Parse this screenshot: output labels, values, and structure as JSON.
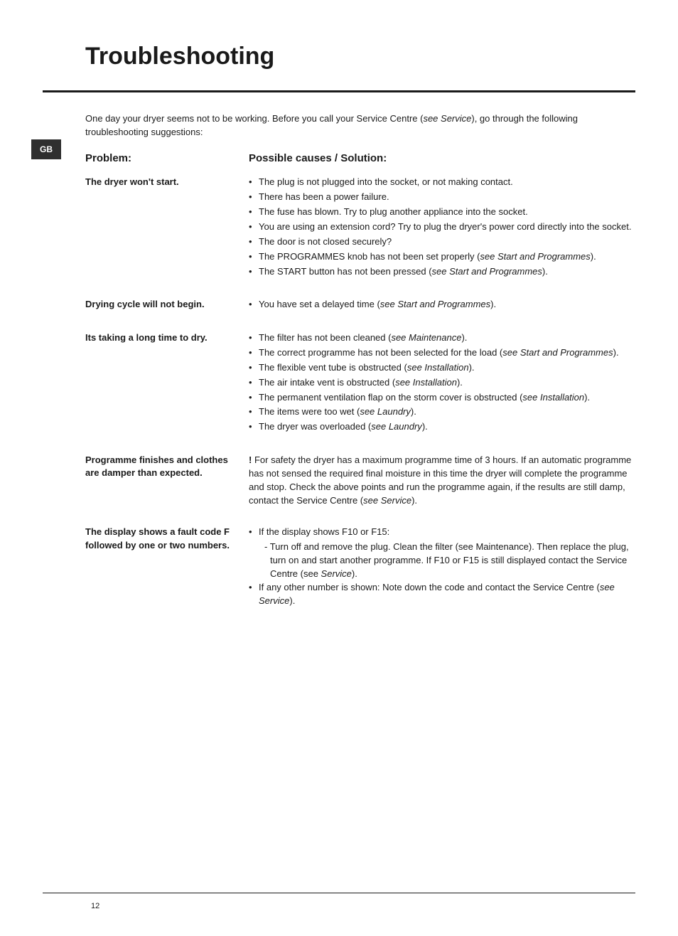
{
  "colors": {
    "text": "#1a1a1a",
    "bg": "#ffffff",
    "tag_bg": "#2f2f2f",
    "tag_fg": "#ffffff"
  },
  "typography": {
    "title_size": 34,
    "header_size": 15,
    "body_size": 13,
    "tag_size": 12,
    "pagenum_size": 11
  },
  "title": "Troubleshooting",
  "lang_tag": "GB",
  "intro_before_italic": "One day your dryer seems not to be working. Before you call your Service Centre (",
  "intro_italic": "see Service",
  "intro_after_italic": "), go through the following troubleshooting suggestions:",
  "headers": {
    "problem": "Problem:",
    "solution": "Possible causes / Solution:"
  },
  "rows": [
    {
      "problem": "The dryer won't start.",
      "bullets": [
        [
          {
            "t": "The plug is not plugged into the socket, or not making contact."
          }
        ],
        [
          {
            "t": "There has been a power failure."
          }
        ],
        [
          {
            "t": "The fuse has blown. Try to plug another appliance into the socket."
          }
        ],
        [
          {
            "t": "You are using an extension cord?  Try to plug the dryer's power cord directly into the socket."
          }
        ],
        [
          {
            "t": "The door is not closed securely?"
          }
        ],
        [
          {
            "t": "The PROGRAMMES knob has not been set properly ("
          },
          {
            "t": "see Start and Programmes",
            "i": true
          },
          {
            "t": ")."
          }
        ],
        [
          {
            "t": "The START button has not been pressed ("
          },
          {
            "t": "see Start and Programmes",
            "i": true
          },
          {
            "t": ")."
          }
        ]
      ]
    },
    {
      "problem": "Drying cycle will not begin.",
      "bullets": [
        [
          {
            "t": "You have set a delayed time ("
          },
          {
            "t": "see Start and Programmes",
            "i": true
          },
          {
            "t": ")."
          }
        ]
      ]
    },
    {
      "problem": "Its taking a long time to dry.",
      "bullets": [
        [
          {
            "t": "The filter has not been cleaned ("
          },
          {
            "t": "see Maintenance",
            "i": true
          },
          {
            "t": ")."
          }
        ],
        [
          {
            "t": "The correct programme has not been selected for the load ("
          },
          {
            "t": "see Start and Programmes",
            "i": true
          },
          {
            "t": ")."
          }
        ],
        [
          {
            "t": "The flexible vent tube is obstructed ("
          },
          {
            "t": "see Installation",
            "i": true
          },
          {
            "t": ")."
          }
        ],
        [
          {
            "t": "The air intake vent is obstructed ("
          },
          {
            "t": "see Installation",
            "i": true
          },
          {
            "t": ")."
          }
        ],
        [
          {
            "t": "The permanent ventilation flap on the storm cover is obstructed ("
          },
          {
            "t": "see Installation",
            "i": true
          },
          {
            "t": ")."
          }
        ],
        [
          {
            "t": "The items were too wet ("
          },
          {
            "t": "see Laundry",
            "i": true
          },
          {
            "t": ")."
          }
        ],
        [
          {
            "t": "The dryer was overloaded ("
          },
          {
            "t": "see Laundry",
            "i": true
          },
          {
            "t": ")."
          }
        ]
      ]
    },
    {
      "problem": "Programme finishes and clothes are damper than expected.",
      "para": [
        {
          "t": "! ",
          "b": true
        },
        {
          "t": "For safety the dryer has a maximum programme time of 3 hours. If an automatic programme has not sensed the required final moisture in this time the dryer will complete the programme and stop. Check the above points and run the programme again, if the results are still damp, contact the Service Centre ("
        },
        {
          "t": "see Service",
          "i": true
        },
        {
          "t": ")."
        }
      ]
    },
    {
      "problem": "The display shows a fault code F followed by one or two numbers.",
      "bullets": [
        [
          {
            "t": "If the display shows F10 or F15:"
          }
        ],
        [
          {
            "t": "If any other number is shown: Note down the code and contact the Service Centre ("
          },
          {
            "t": "see Service",
            "i": true
          },
          {
            "t": ")."
          }
        ]
      ],
      "sub_after_first": [
        {
          "t": "- Turn off and remove the plug. Clean the filter (see Maintenance). Then replace the plug, turn on and start another programme. If F10 or F15 is still displayed contact the Service Centre (see "
        },
        {
          "t": "Service",
          "i": true
        },
        {
          "t": ")."
        }
      ]
    }
  ],
  "page_number": "12"
}
